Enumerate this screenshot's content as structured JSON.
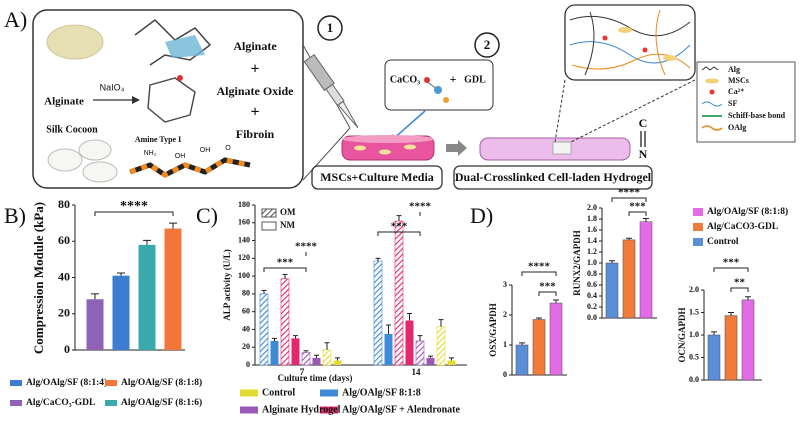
{
  "panel_a": {
    "label": "A)",
    "alginate_top": "Alginate",
    "plus_1": "+",
    "alginate_oxide": "Alginate Oxide",
    "plus_2": "+",
    "fibroin": "Fibroin",
    "reagent": "NaIO₄",
    "alginate_left": "Alginate",
    "silk": "Silk Cocoon",
    "amine": "Amine Type I",
    "amine_labels": [
      "NH₂",
      "OH",
      "OH",
      "O"
    ],
    "step_1": "1",
    "step_2": "2",
    "caco3": "CaCO₃",
    "plus_3": "+",
    "gdl": "GDL",
    "media": "MSCs+Culture Media",
    "hydrogel": "Dual-Crosslinked Cell-laden Hydrogel",
    "bond_c": "C",
    "bond_n": "N",
    "legend": [
      "Alg",
      "MSCs",
      "Ca²⁺",
      "SF",
      "Schiff-base bond",
      "OAlg"
    ]
  },
  "panel_labels": [
    "B)",
    "C)",
    "D)"
  ],
  "chart_data": [
    {
      "type": "bar",
      "ylabel": "Compression Module (kPa)",
      "ylim": [
        0,
        80
      ],
      "yticks": [
        0,
        20,
        40,
        60,
        80
      ],
      "series": [
        {
          "name": "Alg/CaCO₃-GDL",
          "color": "#8e63b5",
          "value": 28,
          "error": 3
        },
        {
          "name": "Alg/OAlg/SF (8:1:4)",
          "color": "#3d7dd0",
          "value": 41,
          "error": 1.5
        },
        {
          "name": "Alg/OAlg/SF (8:1:6)",
          "color": "#3aa9ab",
          "value": 58,
          "error": 2.5
        },
        {
          "name": "Alg/OAlg/SF (8:1:8)",
          "color": "#f2763a",
          "value": 67,
          "error": 3
        }
      ],
      "annotations": [
        "****"
      ]
    },
    {
      "type": "grouped_bar",
      "ylabel": "ALP activity (U/L)",
      "xlabel": "Culture time (days)",
      "categories": [
        "7",
        "14"
      ],
      "patterns": [
        "OM",
        "NM"
      ],
      "ylim": [
        0,
        180
      ],
      "yticks": [
        0,
        20,
        40,
        60,
        80,
        100,
        120,
        140,
        160,
        180
      ],
      "series": [
        {
          "name": "Alg/OAlg/SF  8:1:8",
          "color": "#3e8ad6",
          "om_values": [
            80,
            117
          ],
          "om_errors": [
            4,
            3
          ],
          "nm_values": [
            27,
            35
          ],
          "nm_errors": [
            3,
            10
          ]
        },
        {
          "name": "Alg/OAlg/SF + Alendronate",
          "color": "#e4286e",
          "om_values": [
            97,
            162
          ],
          "om_errors": [
            5,
            6
          ],
          "nm_values": [
            30,
            50
          ],
          "nm_errors": [
            3,
            8
          ]
        },
        {
          "name": "Alginate Hydrogel",
          "color": "#9b59b6",
          "om_values": [
            14,
            27
          ],
          "om_errors": [
            2,
            6
          ],
          "nm_values": [
            8,
            8
          ],
          "nm_errors": [
            3,
            2
          ]
        },
        {
          "name": "Control",
          "color": "#e3dc2e",
          "om_values": [
            17,
            43
          ],
          "om_errors": [
            8,
            8
          ],
          "nm_values": [
            5,
            5
          ],
          "nm_errors": [
            3,
            3
          ]
        }
      ],
      "annotations": [
        "***",
        "****",
        "***",
        "****"
      ]
    },
    {
      "type": "bar_panels",
      "legend": [
        {
          "name": "Alg/OAlg/SF  (8:1:8)",
          "color": "#e36ce6"
        },
        {
          "name": "Alg/CaCO3-GDL",
          "color": "#f07b3a"
        },
        {
          "name": "Control",
          "color": "#5a8fd8"
        }
      ],
      "panels": [
        {
          "ylabel": "OSX/GAPDH",
          "ylim": [
            0,
            3
          ],
          "yticks": [
            0,
            1,
            2,
            3
          ],
          "values": [
            2.4,
            1.85,
            1.0
          ],
          "errors": [
            0.1,
            0.05,
            0.07
          ],
          "annotations": [
            "****",
            "***"
          ]
        },
        {
          "ylabel": "RUNX2/GAPDH",
          "ylim": [
            0,
            2
          ],
          "yticks": [
            {
              "value": 0,
              "label": "0.0"
            },
            0.2,
            0.4,
            0.6,
            0.8,
            {
              "value": 1,
              "label": "1.0"
            },
            1.2,
            1.4,
            1.6,
            1.8,
            {
              "value": 2,
              "label": "2.0"
            }
          ],
          "values": [
            1.75,
            1.42,
            1.0
          ],
          "errors": [
            0.06,
            0.03,
            0.04
          ],
          "annotations": [
            "****",
            "***"
          ]
        },
        {
          "ylabel": "OCN/GAPDH",
          "ylim": [
            0,
            2
          ],
          "yticks": [
            {
              "value": 0,
              "label": "0.0"
            },
            0.5,
            {
              "value": 1,
              "label": "1.0"
            },
            1.5,
            {
              "value": 2,
              "label": "2.0"
            }
          ],
          "values": [
            1.78,
            1.43,
            1.0
          ],
          "errors": [
            0.07,
            0.07,
            0.07
          ],
          "annotations": [
            "***",
            "**"
          ]
        }
      ]
    }
  ]
}
